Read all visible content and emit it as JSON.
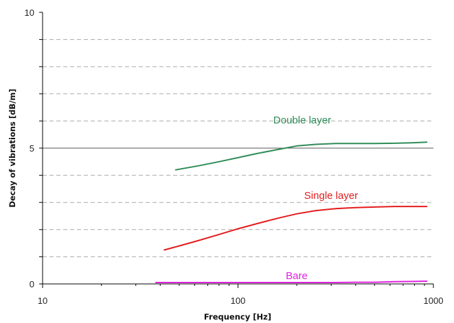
{
  "chart_data": {
    "type": "line",
    "xlabel": "Frequency [Hz]",
    "ylabel": "Decay of vibrations [dB/m]",
    "x_scale": "log",
    "xlim": [
      10,
      1000
    ],
    "ylim": [
      0,
      10
    ],
    "x_ticks": [
      10,
      100,
      1000
    ],
    "y_ticks": [
      0,
      5,
      10
    ],
    "x_tick_labels": [
      "10",
      "100",
      "1000"
    ],
    "y_tick_labels": [
      "0",
      "5",
      "10"
    ],
    "grid": "horizontal dashed every 1 dB/m, solid at 5",
    "series": [
      {
        "name": "Double layer",
        "color": "#2e8b57",
        "x": [
          48,
          63,
          80,
          100,
          125,
          160,
          200,
          250,
          315,
          400,
          500,
          630,
          800,
          925
        ],
        "y": [
          4.2,
          4.35,
          4.5,
          4.65,
          4.8,
          4.95,
          5.08,
          5.14,
          5.17,
          5.17,
          5.17,
          5.18,
          5.2,
          5.22
        ]
      },
      {
        "name": "Single layer",
        "color": "#e41a1c",
        "x": [
          42,
          50,
          63,
          80,
          100,
          125,
          160,
          200,
          250,
          315,
          400,
          500,
          630,
          800,
          925
        ],
        "y": [
          1.25,
          1.4,
          1.6,
          1.82,
          2.03,
          2.22,
          2.42,
          2.58,
          2.7,
          2.77,
          2.81,
          2.83,
          2.85,
          2.85,
          2.85
        ]
      },
      {
        "name": "Bare",
        "color": "#e020e0",
        "x": [
          38,
          50,
          63,
          80,
          100,
          125,
          160,
          200,
          250,
          315,
          400,
          500,
          630,
          800,
          925
        ],
        "y": [
          0.05,
          0.05,
          0.05,
          0.05,
          0.05,
          0.05,
          0.05,
          0.05,
          0.05,
          0.05,
          0.06,
          0.06,
          0.08,
          0.09,
          0.1
        ]
      }
    ]
  }
}
